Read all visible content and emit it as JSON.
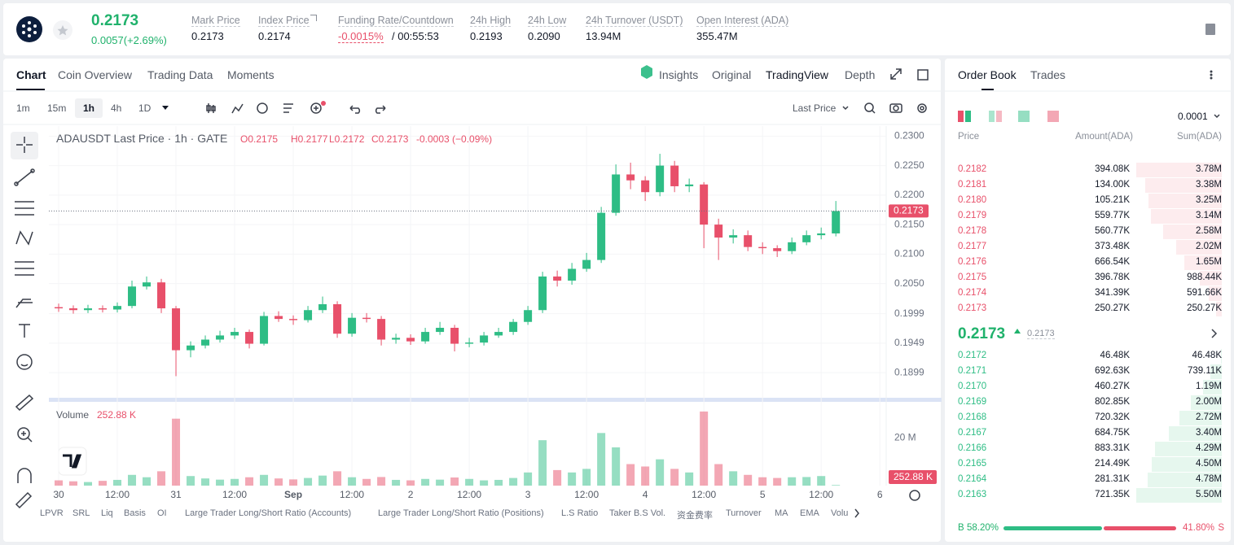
{
  "header": {
    "price": "0.2173",
    "change": "0.0057(+2.69%)",
    "stats": [
      {
        "label": "Mark Price",
        "value": "0.2173"
      },
      {
        "label": "Index Price",
        "value": "0.2174"
      },
      {
        "label": "Funding Rate/Countdown",
        "value": "-0.0015%",
        "countdown": "/ 00:55:53"
      },
      {
        "label": "24h High",
        "value": "0.2193"
      },
      {
        "label": "24h Low",
        "value": "0.2090"
      },
      {
        "label": "24h Turnover (USDT)",
        "value": "13.94M"
      },
      {
        "label": "Open Interest (ADA)",
        "value": "355.47M"
      }
    ]
  },
  "chart_tabs": [
    "Chart",
    "Coin Overview",
    "Trading Data",
    "Moments"
  ],
  "view_tabs": [
    "Insights",
    "Original",
    "TradingView",
    "Depth"
  ],
  "intervals": [
    "1m",
    "15m",
    "1h",
    "4h",
    "1D"
  ],
  "price_type": "Last Price",
  "indicators": [
    "LPVR",
    "SRL",
    "Liq",
    "Basis",
    "OI",
    "Large Trader Long/Short Ratio (Accounts)",
    "Large Trader Long/Short Ratio (Positions)",
    "L.S Ratio",
    "Taker B.S Vol.",
    "资金费率",
    "Turnover",
    "MA",
    "EMA",
    "Volu"
  ],
  "chart_data": {
    "type": "candlestick",
    "title": "ADAUSDT Last Price · 1h · GATE",
    "ohlc": [
      "O0.2175",
      "H0.2177",
      "L0.2172",
      "C0.2173",
      "-0.0003 (−0.09%)"
    ],
    "x": [
      0,
      3,
      6,
      9,
      12,
      15,
      18,
      21,
      24,
      27,
      30,
      33,
      36,
      39,
      42,
      45,
      48,
      51,
      54,
      57,
      60,
      63,
      66,
      69,
      72,
      75,
      78,
      81,
      84,
      87,
      90,
      93,
      96,
      99,
      102,
      105,
      108,
      111,
      114,
      117,
      120,
      123,
      126,
      129,
      132,
      135,
      138,
      141,
      144,
      147,
      150,
      153,
      156,
      159
    ],
    "open": [
      0.201,
      0.2008,
      0.2005,
      0.2008,
      0.2006,
      0.2012,
      0.2045,
      0.2052,
      0.2008,
      0.1937,
      0.1945,
      0.1955,
      0.1962,
      0.1968,
      0.1948,
      0.1995,
      0.199,
      0.1988,
      0.2005,
      0.2015,
      0.1965,
      0.1992,
      0.199,
      0.1955,
      0.1958,
      0.1952,
      0.1968,
      0.1975,
      0.1948,
      0.195,
      0.1962,
      0.1968,
      0.1985,
      0.2005,
      0.2062,
      0.2055,
      0.2075,
      0.209,
      0.217,
      0.2235,
      0.2225,
      0.2205,
      0.225,
      0.2215,
      0.2218,
      0.215,
      0.2128,
      0.2132,
      0.2112,
      0.211,
      0.2105,
      0.212,
      0.2132,
      0.2135
    ],
    "high": [
      0.2016,
      0.2013,
      0.2014,
      0.2013,
      0.2018,
      0.2055,
      0.2062,
      0.2058,
      0.2012,
      0.1952,
      0.1962,
      0.197,
      0.1975,
      0.1972,
      0.2002,
      0.2003,
      0.1996,
      0.2012,
      0.2028,
      0.202,
      0.2,
      0.2,
      0.1995,
      0.1965,
      0.1964,
      0.1975,
      0.1985,
      0.198,
      0.1958,
      0.1968,
      0.1975,
      0.199,
      0.2012,
      0.207,
      0.2072,
      0.2085,
      0.2102,
      0.218,
      0.2252,
      0.2255,
      0.2232,
      0.227,
      0.2258,
      0.2228,
      0.2222,
      0.216,
      0.2142,
      0.214,
      0.212,
      0.2115,
      0.2128,
      0.214,
      0.2145,
      0.219
    ],
    "low": [
      0.2002,
      0.1999,
      0.2,
      0.2001,
      0.2001,
      0.2008,
      0.204,
      0.2,
      0.1893,
      0.1925,
      0.194,
      0.195,
      0.1956,
      0.194,
      0.1945,
      0.1985,
      0.198,
      0.1984,
      0.2,
      0.1958,
      0.196,
      0.1984,
      0.1945,
      0.1948,
      0.1946,
      0.1948,
      0.1963,
      0.1935,
      0.1942,
      0.1945,
      0.1958,
      0.1963,
      0.198,
      0.2,
      0.2045,
      0.2048,
      0.207,
      0.2085,
      0.2165,
      0.221,
      0.219,
      0.2198,
      0.2205,
      0.2205,
      0.211,
      0.209,
      0.2118,
      0.2105,
      0.21,
      0.2095,
      0.21,
      0.2115,
      0.2125,
      0.213
    ],
    "close": [
      0.2008,
      0.2005,
      0.2008,
      0.2006,
      0.2012,
      0.2045,
      0.2052,
      0.2008,
      0.1937,
      0.1945,
      0.1955,
      0.1962,
      0.1968,
      0.1948,
      0.1995,
      0.199,
      0.1988,
      0.2005,
      0.2015,
      0.1965,
      0.1992,
      0.199,
      0.1955,
      0.1958,
      0.1952,
      0.1968,
      0.1975,
      0.1948,
      0.195,
      0.1962,
      0.1968,
      0.1985,
      0.2005,
      0.2062,
      0.2055,
      0.2075,
      0.209,
      0.217,
      0.2235,
      0.2225,
      0.2205,
      0.225,
      0.2215,
      0.2218,
      0.215,
      0.2128,
      0.2132,
      0.2112,
      0.211,
      0.2105,
      0.212,
      0.2132,
      0.2135,
      0.2173
    ],
    "volume": [
      2.2,
      1.8,
      1.5,
      2,
      2.4,
      4.5,
      3.5,
      6,
      28,
      4,
      3,
      2.5,
      2.8,
      3.5,
      4.5,
      3,
      2.6,
      3.2,
      4.2,
      6,
      3.5,
      2.8,
      3.6,
      2.4,
      2.2,
      2.8,
      2.5,
      3.4,
      2.8,
      2.2,
      2.4,
      3.2,
      5.5,
      19,
      6.5,
      5.5,
      7,
      22,
      16,
      9,
      8,
      11,
      7,
      5.5,
      31,
      9,
      6,
      4.5,
      3.5,
      3.2,
      3.5,
      3.6,
      4,
      0.25288
    ],
    "xlim": [
      -2,
      168.8
    ],
    "xticks": [
      {
        "value": 0,
        "label": "30"
      },
      {
        "value": 12,
        "label": "12:00"
      },
      {
        "value": 24,
        "label": "31"
      },
      {
        "value": 36,
        "label": "12:00"
      },
      {
        "value": 48,
        "label": "Sep"
      },
      {
        "value": 60,
        "label": "12:00"
      },
      {
        "value": 72,
        "label": "2"
      },
      {
        "value": 84,
        "label": "12:00"
      },
      {
        "value": 96,
        "label": "3"
      },
      {
        "value": 108,
        "label": "12:00"
      },
      {
        "value": 120,
        "label": "4"
      },
      {
        "value": 132,
        "label": "12:00"
      },
      {
        "value": 144,
        "label": "5"
      },
      {
        "value": 156,
        "label": "12:00"
      },
      {
        "value": 168,
        "label": "6"
      }
    ],
    "ylim": [
      0.1855,
      0.2317
    ],
    "yticks": [
      {
        "value": 0.23,
        "label": "0.2300"
      },
      {
        "value": 0.225,
        "label": "0.2250"
      },
      {
        "value": 0.22,
        "label": "0.2200"
      },
      {
        "value": 0.215,
        "label": "0.2150"
      },
      {
        "value": 0.21,
        "label": "0.2100"
      },
      {
        "value": 0.205,
        "label": "0.2050"
      },
      {
        "value": 0.1999,
        "label": "0.1999"
      },
      {
        "value": 0.1949,
        "label": "0.1949"
      },
      {
        "value": 0.1899,
        "label": "0.1899"
      }
    ],
    "last_price": {
      "value": 0.2173,
      "label": "0.2173"
    },
    "volume_title": "Volume",
    "volume_value_label": "252.88 K",
    "volume_ylim": [
      0,
      33
    ],
    "volume_yticks": [
      {
        "value": 20,
        "label": "20 M"
      }
    ],
    "grid": true,
    "up_color": "#2ebd85",
    "down_color": "#e8506a"
  },
  "orderbook": {
    "tabs": [
      "Order Book",
      "Trades"
    ],
    "precision": "0.0001",
    "columns": [
      "Price",
      "Amount(ADA)",
      "Sum(ADA)"
    ],
    "asks": [
      {
        "price": "0.2182",
        "amount": "394.08K",
        "sum": {
          "value": 3.78,
          "label": "3.78M"
        }
      },
      {
        "price": "0.2181",
        "amount": "134.00K",
        "sum": {
          "value": 3.38,
          "label": "3.38M"
        }
      },
      {
        "price": "0.2180",
        "amount": "105.21K",
        "sum": {
          "value": 3.25,
          "label": "3.25M"
        }
      },
      {
        "price": "0.2179",
        "amount": "559.77K",
        "sum": {
          "value": 3.14,
          "label": "3.14M"
        }
      },
      {
        "price": "0.2178",
        "amount": "560.77K",
        "sum": {
          "value": 2.58,
          "label": "2.58M"
        }
      },
      {
        "price": "0.2177",
        "amount": "373.48K",
        "sum": {
          "value": 2.02,
          "label": "2.02M"
        }
      },
      {
        "price": "0.2176",
        "amount": "666.54K",
        "sum": {
          "value": 1.65,
          "label": "1.65M"
        }
      },
      {
        "price": "0.2175",
        "amount": "396.78K",
        "sum": {
          "value": 0.98844,
          "label": "988.44K"
        }
      },
      {
        "price": "0.2174",
        "amount": "341.39K",
        "sum": {
          "value": 0.59166,
          "label": "591.66K"
        }
      },
      {
        "price": "0.2173",
        "amount": "250.27K",
        "sum": {
          "value": 0.25027,
          "label": "250.27K"
        }
      }
    ],
    "last": "0.2173",
    "mark": "0.2173",
    "bids": [
      {
        "price": "0.2172",
        "amount": "46.48K",
        "sum": {
          "value": 0.04648,
          "label": "46.48K"
        }
      },
      {
        "price": "0.2171",
        "amount": "692.63K",
        "sum": {
          "value": 0.73911,
          "label": "739.11K"
        }
      },
      {
        "price": "0.2170",
        "amount": "460.27K",
        "sum": {
          "value": 1.19,
          "label": "1.19M"
        }
      },
      {
        "price": "0.2169",
        "amount": "802.85K",
        "sum": {
          "value": 2,
          "label": "2.00M"
        }
      },
      {
        "price": "0.2168",
        "amount": "720.32K",
        "sum": {
          "value": 2.72,
          "label": "2.72M"
        }
      },
      {
        "price": "0.2167",
        "amount": "684.75K",
        "sum": {
          "value": 3.4,
          "label": "3.40M"
        }
      },
      {
        "price": "0.2166",
        "amount": "883.31K",
        "sum": {
          "value": 4.29,
          "label": "4.29M"
        }
      },
      {
        "price": "0.2165",
        "amount": "214.49K",
        "sum": {
          "value": 4.5,
          "label": "4.50M"
        }
      },
      {
        "price": "0.2164",
        "amount": "281.31K",
        "sum": {
          "value": 4.78,
          "label": "4.78M"
        }
      },
      {
        "price": "0.2163",
        "amount": "721.35K",
        "sum": {
          "value": 5.5,
          "label": "5.50M"
        }
      }
    ],
    "buy_tag": "B",
    "sell_tag": "S",
    "buy": {
      "value": 58.2,
      "label": "58.20%"
    },
    "sell": {
      "value": 41.8,
      "label": "41.80%"
    }
  }
}
